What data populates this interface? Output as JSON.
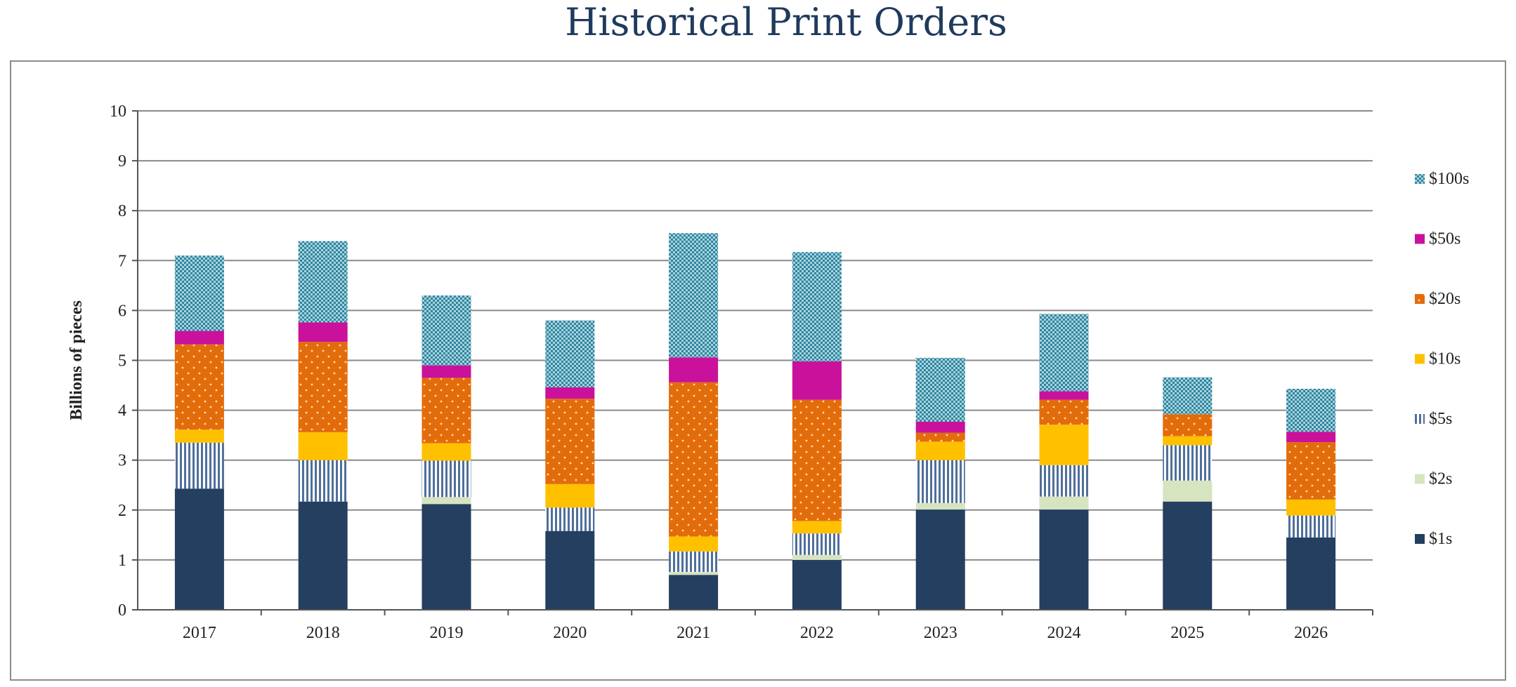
{
  "title": "Historical Print Orders",
  "chart_data": {
    "type": "bar",
    "stacked": true,
    "categories": [
      "2017",
      "2018",
      "2019",
      "2020",
      "2021",
      "2022",
      "2023",
      "2024",
      "2025",
      "2026"
    ],
    "ylabel": "Billions of pieces",
    "xlabel": "",
    "ylim": [
      0,
      10
    ],
    "yticks": [
      0,
      1,
      2,
      3,
      4,
      5,
      6,
      7,
      8,
      9,
      10
    ],
    "grid": true,
    "legend_position": "right",
    "series": [
      {
        "name": "$1s",
        "color": "#243f60",
        "pattern": "solid",
        "values": [
          2.43,
          2.17,
          2.12,
          1.58,
          0.7,
          1.0,
          2.01,
          2.01,
          2.17,
          1.45
        ]
      },
      {
        "name": "$2s",
        "color": "#d6e4c0",
        "pattern": "solid",
        "values": [
          0.0,
          0.0,
          0.14,
          0.0,
          0.06,
          0.1,
          0.13,
          0.26,
          0.42,
          0.0
        ]
      },
      {
        "name": "$5s",
        "color": "#a9bdd8",
        "pattern": "vlines",
        "values": [
          0.92,
          0.83,
          0.73,
          0.47,
          0.41,
          0.43,
          0.86,
          0.63,
          0.71,
          0.44
        ]
      },
      {
        "name": "$10s",
        "color": "#ffc000",
        "pattern": "solid",
        "values": [
          0.26,
          0.56,
          0.35,
          0.47,
          0.3,
          0.25,
          0.37,
          0.81,
          0.18,
          0.32
        ]
      },
      {
        "name": "$20s",
        "color": "#e36c0a",
        "pattern": "dots",
        "values": [
          1.71,
          1.81,
          1.31,
          1.71,
          3.09,
          2.43,
          0.18,
          0.5,
          0.44,
          1.15
        ]
      },
      {
        "name": "$50s",
        "color": "#c9119b",
        "pattern": "solid",
        "values": [
          0.27,
          0.39,
          0.25,
          0.23,
          0.5,
          0.77,
          0.22,
          0.17,
          0.0,
          0.21
        ]
      },
      {
        "name": "$100s",
        "color": "#31859c",
        "pattern": "checker",
        "values": [
          1.51,
          1.63,
          1.4,
          1.34,
          2.49,
          2.19,
          1.28,
          1.55,
          0.74,
          0.86
        ]
      }
    ]
  }
}
